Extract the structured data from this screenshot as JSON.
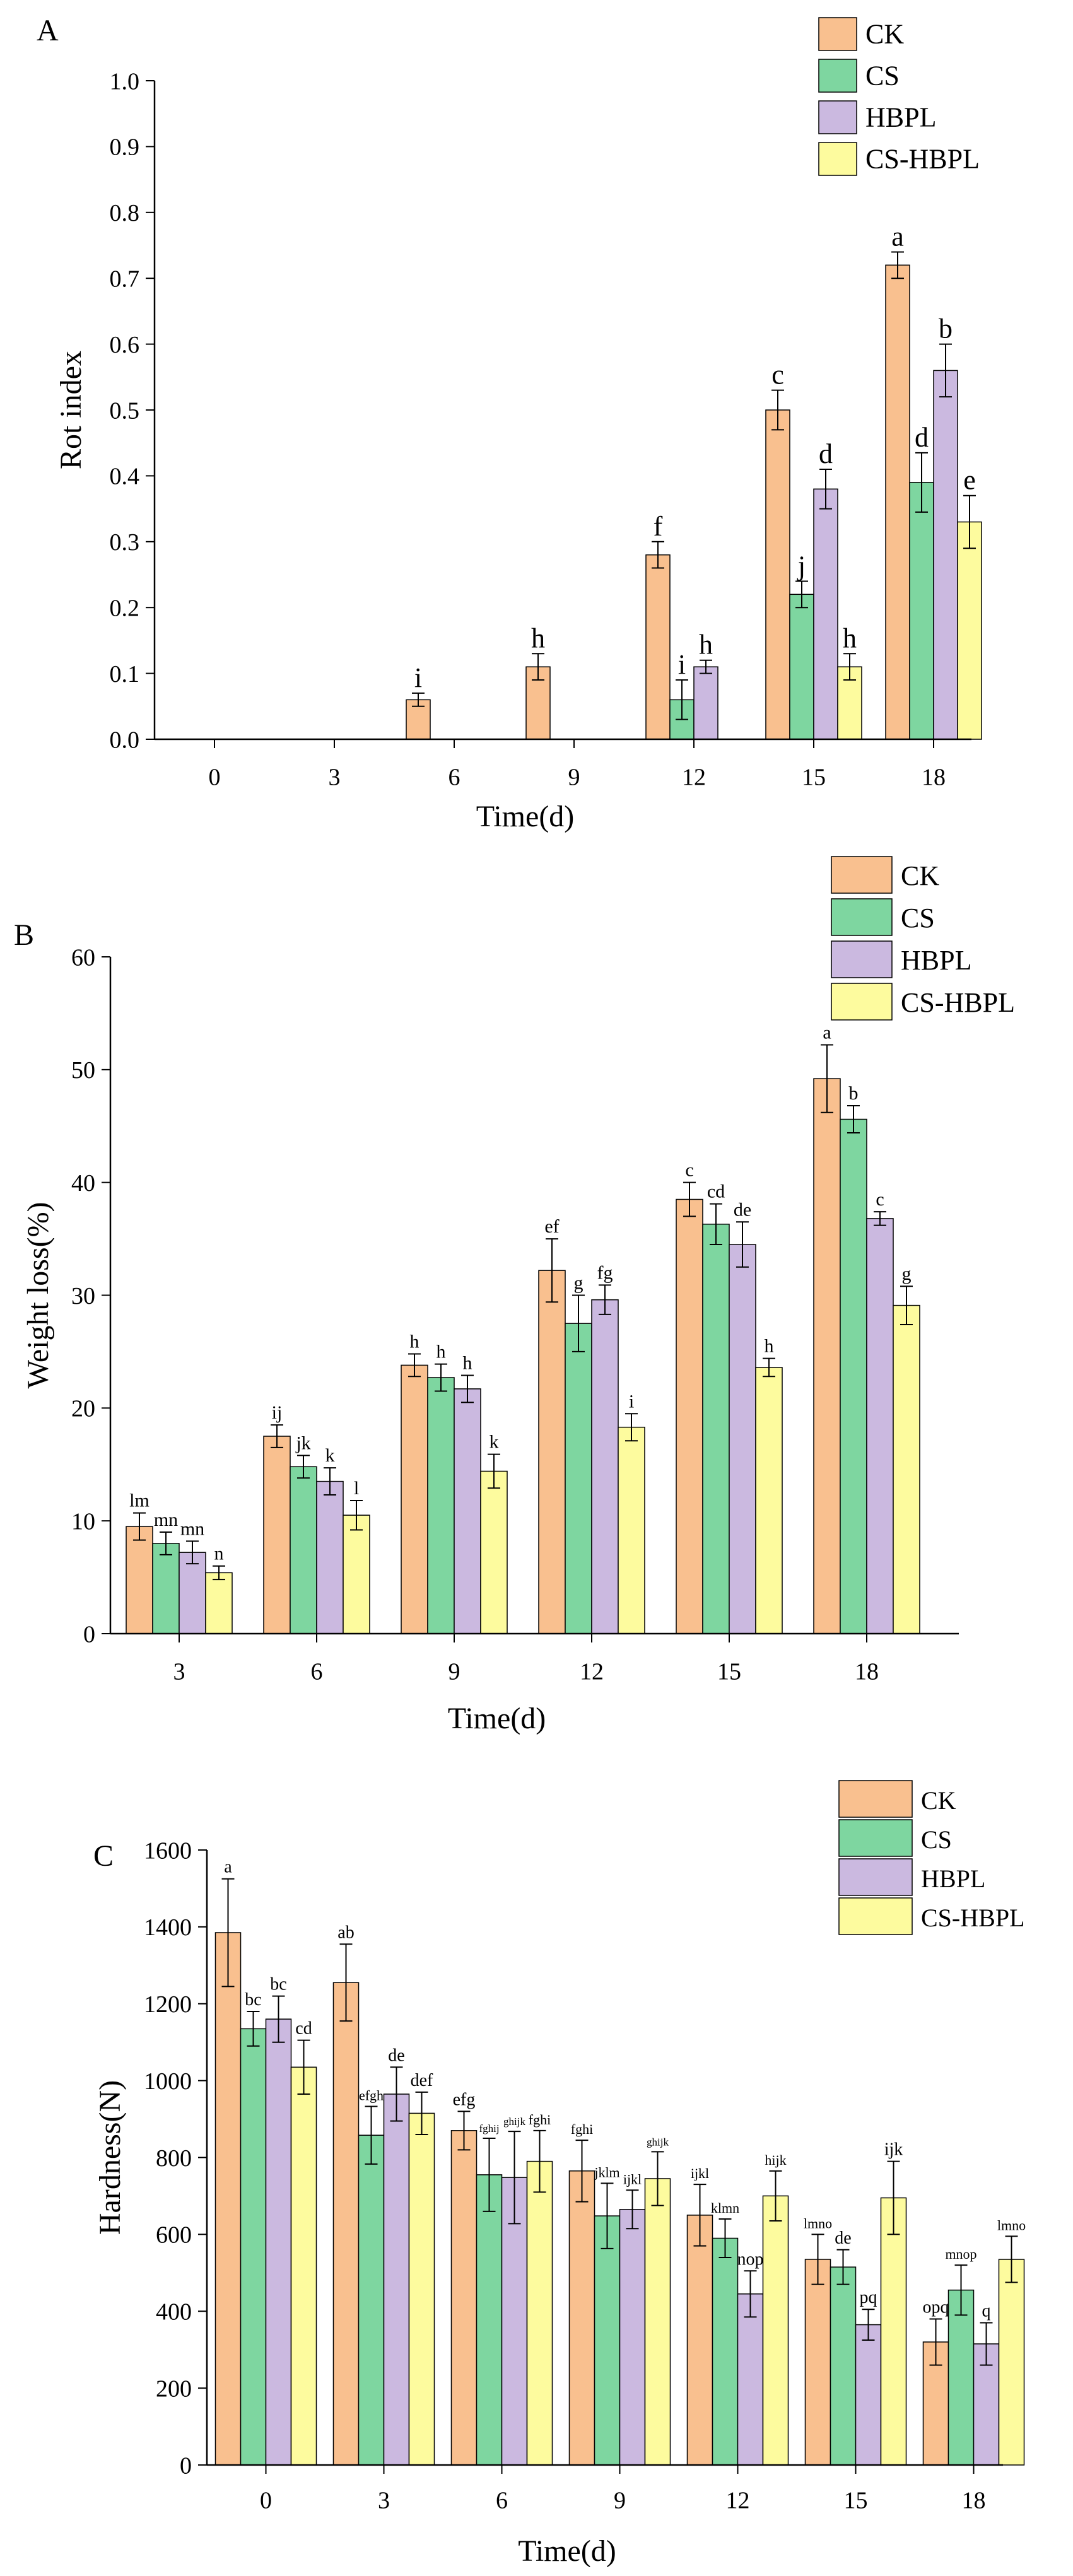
{
  "series_names": [
    "CK",
    "CS",
    "HBPL",
    "CS-HBPL"
  ],
  "colors": {
    "CK": "#f9c08f",
    "CS": "#7ed6a0",
    "HBPL": "#cbb9e0",
    "CS-HBPL": "#fdfb9e",
    "axis": "#000000",
    "background": "#ffffff"
  },
  "chart_data": [
    {
      "panel_label": "A",
      "type": "bar",
      "title": "",
      "xlabel": "Time(d)",
      "ylabel": "Rot index",
      "categories": [
        "0",
        "3",
        "6",
        "9",
        "12",
        "15",
        "18"
      ],
      "ylim": [
        0,
        1.0
      ],
      "yticks": [
        0.0,
        0.1,
        0.2,
        0.3,
        0.4,
        0.5,
        0.6,
        0.7,
        0.8,
        0.9,
        1.0
      ],
      "ytick_labels": [
        "0.0",
        "0.1",
        "0.2",
        "0.3",
        "0.4",
        "0.5",
        "0.6",
        "0.7",
        "0.8",
        "0.9",
        "1.0"
      ],
      "series": [
        {
          "name": "CK",
          "values": [
            0,
            0,
            0.06,
            0.11,
            0.28,
            0.5,
            0.72
          ],
          "errors": [
            0,
            0,
            0.01,
            0.02,
            0.02,
            0.03,
            0.02
          ],
          "labels": [
            "",
            "",
            "i",
            "h",
            "f",
            "c",
            "a"
          ]
        },
        {
          "name": "CS",
          "values": [
            0,
            0,
            0,
            0,
            0.06,
            0.22,
            0.39
          ],
          "errors": [
            0,
            0,
            0,
            0,
            0.03,
            0.02,
            0.045
          ],
          "labels": [
            "",
            "",
            "",
            "",
            "i",
            "j",
            "d"
          ]
        },
        {
          "name": "HBPL",
          "values": [
            0,
            0,
            0,
            0,
            0.11,
            0.38,
            0.56
          ],
          "errors": [
            0,
            0,
            0,
            0,
            0.01,
            0.03,
            0.04
          ],
          "labels": [
            "",
            "",
            "",
            "",
            "h",
            "d",
            "b"
          ]
        },
        {
          "name": "CS-HBPL",
          "values": [
            0,
            0,
            0,
            0,
            0,
            0.11,
            0.33
          ],
          "errors": [
            0,
            0,
            0,
            0,
            0,
            0.02,
            0.04
          ],
          "labels": [
            "",
            "",
            "",
            "",
            "",
            "h",
            "e"
          ]
        }
      ],
      "legend_position": "top-right"
    },
    {
      "panel_label": "B",
      "type": "bar",
      "title": "",
      "xlabel": "Time(d)",
      "ylabel": "Weight loss(%)",
      "categories": [
        "3",
        "6",
        "9",
        "12",
        "15",
        "18"
      ],
      "ylim": [
        0,
        60
      ],
      "yticks": [
        0,
        10,
        20,
        30,
        40,
        50,
        60
      ],
      "ytick_labels": [
        "0",
        "10",
        "20",
        "30",
        "40",
        "50",
        "60"
      ],
      "series": [
        {
          "name": "CK",
          "values": [
            9.5,
            17.5,
            23.8,
            32.2,
            38.5,
            49.2
          ],
          "errors": [
            1.2,
            1.0,
            1.0,
            2.8,
            1.5,
            3.0
          ],
          "labels": [
            "lm",
            "ij",
            "h",
            "ef",
            "c",
            "a"
          ]
        },
        {
          "name": "CS",
          "values": [
            8.0,
            14.8,
            22.7,
            27.5,
            36.3,
            45.6
          ],
          "errors": [
            1.0,
            1.0,
            1.2,
            2.5,
            1.8,
            1.2
          ],
          "labels": [
            "mn",
            "jk",
            "h",
            "g",
            "cd",
            "b"
          ]
        },
        {
          "name": "HBPL",
          "values": [
            7.2,
            13.5,
            21.7,
            29.6,
            34.5,
            36.8
          ],
          "errors": [
            1.0,
            1.2,
            1.2,
            1.3,
            2.0,
            0.6
          ],
          "labels": [
            "mn",
            "k",
            "h",
            "fg",
            "de",
            "c"
          ]
        },
        {
          "name": "CS-HBPL",
          "values": [
            5.4,
            10.5,
            14.4,
            18.3,
            23.6,
            29.1
          ],
          "errors": [
            0.6,
            1.3,
            1.5,
            1.2,
            0.8,
            1.7
          ],
          "labels": [
            "n",
            "l",
            "k",
            "i",
            "h",
            "g"
          ]
        }
      ],
      "legend_position": "top-right"
    },
    {
      "panel_label": "C",
      "type": "bar",
      "title": "",
      "xlabel": "Time(d)",
      "ylabel": "Hardness(N)",
      "categories": [
        "0",
        "3",
        "6",
        "9",
        "12",
        "15",
        "18"
      ],
      "ylim": [
        0,
        1600
      ],
      "yticks": [
        0,
        200,
        400,
        600,
        800,
        1000,
        1200,
        1400,
        1600
      ],
      "ytick_labels": [
        "0",
        "200",
        "400",
        "600",
        "800",
        "1000",
        "1200",
        "1400",
        "1600"
      ],
      "series": [
        {
          "name": "CK",
          "values": [
            1385,
            1255,
            870,
            765,
            650,
            535,
            320
          ],
          "errors": [
            140,
            100,
            50,
            80,
            80,
            65,
            60
          ],
          "labels": [
            "a",
            "ab",
            "efg",
            "fghi",
            "ijkl",
            "lmno",
            "opq"
          ]
        },
        {
          "name": "CS",
          "values": [
            1135,
            858,
            755,
            648,
            590,
            515,
            455
          ],
          "errors": [
            45,
            75,
            95,
            85,
            50,
            45,
            65
          ],
          "labels": [
            "bc",
            "efgh",
            "fghij",
            "jklm",
            "klmn",
            "de",
            "mnop"
          ]
        },
        {
          "name": "HBPL",
          "values": [
            1160,
            965,
            748,
            665,
            445,
            365,
            315
          ],
          "errors": [
            60,
            70,
            120,
            50,
            60,
            40,
            55
          ],
          "labels": [
            "bc",
            "de",
            "ghijk",
            "ijkl",
            "nop",
            "pq",
            "q"
          ]
        },
        {
          "name": "CS-HBPL",
          "values": [
            1035,
            915,
            790,
            745,
            700,
            695,
            535
          ],
          "errors": [
            70,
            55,
            80,
            70,
            65,
            95,
            60
          ],
          "labels": [
            "cd",
            "def",
            "fghi",
            "ghijk",
            "hijk",
            "ijk",
            "lmno"
          ]
        }
      ],
      "legend_position": "top-right"
    }
  ]
}
